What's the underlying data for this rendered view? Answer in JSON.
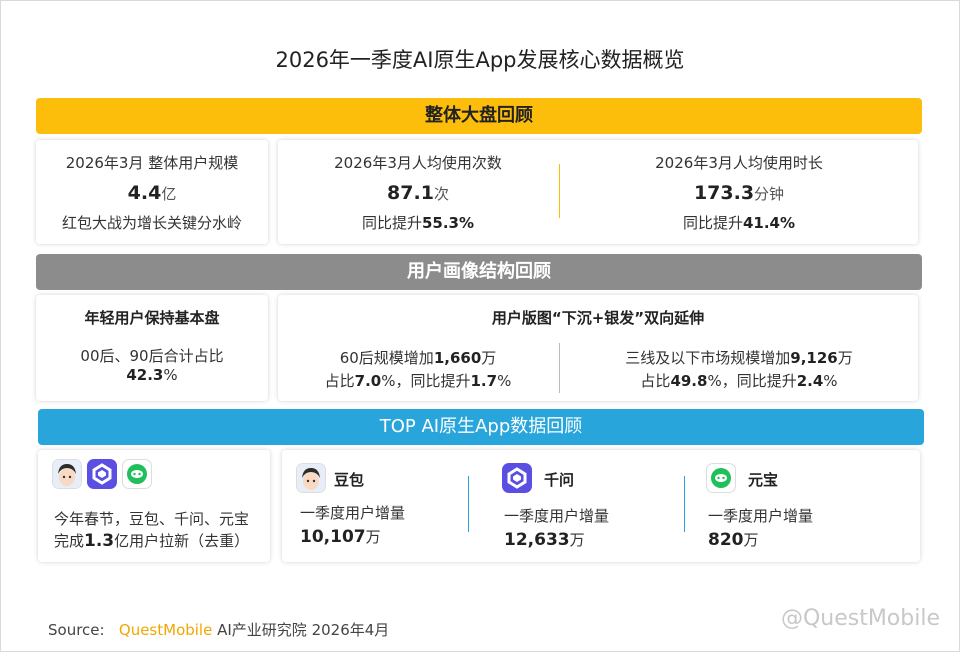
{
  "title": "2026年一季度AI原生App发展核心数据概览",
  "sections": {
    "overall": "整体大盘回顾",
    "profile": "用户画像结构回顾",
    "top": "TOP AI原生App数据回顾"
  },
  "overall": {
    "users": {
      "label": "2026年3月 整体用户规模",
      "value": "4.4",
      "unit": "亿",
      "note": "红包大战为增长关键分水岭"
    },
    "times": {
      "label": "2026年3月人均使用次数",
      "value": "87.1",
      "unit": "次",
      "note_prefix": "同比提升",
      "note_value": "55.3%"
    },
    "duration": {
      "label": "2026年3月人均使用时长",
      "value": "173.3",
      "unit": "分钟",
      "note_prefix": "同比提升",
      "note_value": "41.4%"
    }
  },
  "profile": {
    "young": {
      "title": "年轻用户保持基本盘",
      "line1": "00后、90后合计占比",
      "value": "42.3",
      "pct": "%"
    },
    "expand": {
      "title": "用户版图“下沉+银发”双向延伸"
    },
    "sixty": {
      "p1": "60后规模增加",
      "v1": "1,660",
      "u1": "万",
      "p2": "占比",
      "v2": "7.0",
      "s2": "%，同比提升",
      "v3": "1.7",
      "s3": "%"
    },
    "lower": {
      "p1": "三线及以下市场规模增加",
      "v1": "9,126",
      "u1": "万",
      "p2": "占比",
      "v2": "49.8",
      "s2": "%，同比提升",
      "v3": "2.4",
      "s3": "%"
    }
  },
  "top": {
    "summary": {
      "line1": "今年春节，豆包、千问、元宝",
      "p2": "完成",
      "v2": "1.3",
      "s2": "亿用户拉新（去重）"
    },
    "apps": [
      {
        "name": "豆包",
        "label": "一季度用户增量",
        "value": "10,107",
        "unit": "万",
        "icon": "doubao-icon"
      },
      {
        "name": "千问",
        "label": "一季度用户增量",
        "value": "12,633",
        "unit": "万",
        "icon": "qianwen-icon"
      },
      {
        "name": "元宝",
        "label": "一季度用户增量",
        "value": "820",
        "unit": "万",
        "icon": "yuanbao-icon"
      }
    ]
  },
  "source": {
    "prefix": "Source:",
    "brand": "QuestMobile",
    "rest": " AI产业研究院 2026年4月"
  },
  "watermark": "@QuestMobile",
  "colors": {
    "yellow": "#fcbd0b",
    "gray": "#8c8c8c",
    "blue": "#28a6dc",
    "qianwen": "#5b4ee3",
    "yuanbao": "#1fbf5c"
  }
}
